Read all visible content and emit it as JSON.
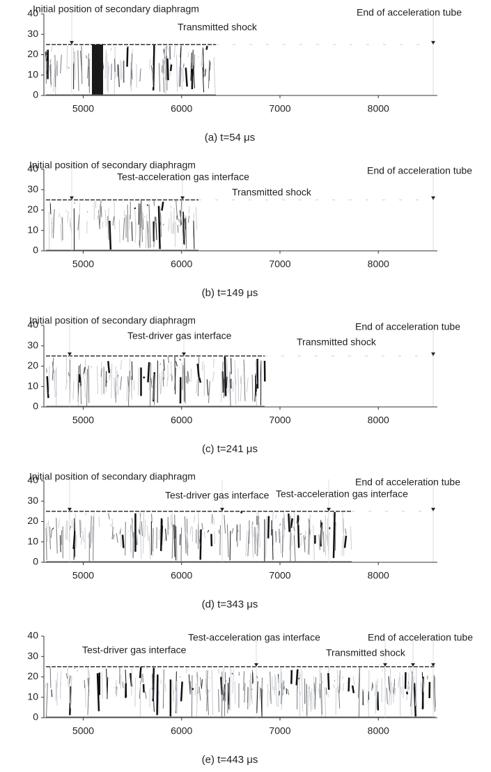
{
  "chart_data": [
    {
      "type": "image",
      "caption": "(a) t=54 μs",
      "annotations": [
        "Initial position of secondary diaphragm",
        "End of acceleration tube",
        "Transmitted shock"
      ],
      "xlim": [
        4600,
        8600
      ],
      "xticks": [
        5000,
        6000,
        7000,
        8000
      ],
      "ylim": [
        0,
        40
      ],
      "yticks": [
        0,
        10,
        20,
        30,
        40
      ]
    },
    {
      "type": "image",
      "caption": "(b) t=149 μs",
      "annotations": [
        "Initial position of secondary diaphragm",
        "Test-acceleration gas interface",
        "End of acceleration tube",
        "Transmitted shock"
      ],
      "xlim": [
        4600,
        8600
      ],
      "xticks": [
        5000,
        6000,
        7000,
        8000
      ],
      "ylim": [
        0,
        40
      ],
      "yticks": [
        0,
        10,
        20,
        30,
        40
      ]
    },
    {
      "type": "image",
      "caption": "(c) t=241 μs",
      "annotations": [
        "Initial position of secondary diaphragm",
        "Test-driver gas interface",
        "End of acceleration tube",
        "Transmitted shock"
      ],
      "xlim": [
        4600,
        8600
      ],
      "xticks": [
        5000,
        6000,
        7000,
        8000
      ],
      "ylim": [
        0,
        40
      ],
      "yticks": [
        0,
        10,
        20,
        30,
        40
      ]
    },
    {
      "type": "image",
      "caption": "(d) t=343  μs",
      "annotations": [
        "Initial position of secondary diaphragm",
        "Test-driver gas interface",
        "Test-acceleration gas interface",
        "End of acceleration tube"
      ],
      "xlim": [
        4600,
        8600
      ],
      "xticks": [
        5000,
        6000,
        7000,
        8000
      ],
      "ylim": [
        0,
        40
      ],
      "yticks": [
        0,
        10,
        20,
        30,
        40
      ]
    },
    {
      "type": "image",
      "caption": "(e) t=443 μs",
      "annotations": [
        "Test-driver gas interface",
        "Test-acceleration gas interface",
        "End of acceleration tube",
        "Transmitted shock"
      ],
      "xlim": [
        4600,
        8600
      ],
      "xticks": [
        5000,
        6000,
        7000,
        8000
      ],
      "ylim": [
        0,
        40
      ],
      "yticks": [
        0,
        10,
        20,
        30,
        40
      ]
    }
  ]
}
